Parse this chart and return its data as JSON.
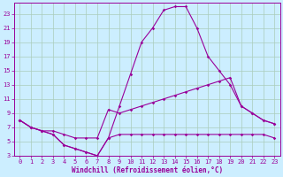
{
  "xlabel": "Windchill (Refroidissement éolien,°C)",
  "bg_color": "#cceeff",
  "line_color": "#990099",
  "grid_color": "#aaccbb",
  "xlim": [
    -0.5,
    23.5
  ],
  "ylim": [
    3,
    24.5
  ],
  "yticks": [
    3,
    5,
    7,
    9,
    11,
    13,
    15,
    17,
    19,
    21,
    23
  ],
  "xticks": [
    0,
    1,
    2,
    3,
    4,
    5,
    6,
    7,
    8,
    9,
    10,
    11,
    12,
    13,
    14,
    15,
    16,
    17,
    18,
    19,
    20,
    21,
    22,
    23
  ],
  "line1_x": [
    0,
    1,
    2,
    3,
    4,
    5,
    6,
    7,
    8,
    9,
    10,
    11,
    12,
    13,
    14,
    15,
    16,
    17,
    18,
    19,
    20,
    21,
    22,
    23
  ],
  "line1_y": [
    8,
    7,
    6.5,
    6,
    4.5,
    4,
    3.5,
    3,
    5.5,
    6,
    6,
    6,
    6,
    6,
    6,
    6,
    6,
    6,
    6,
    6,
    6,
    6,
    6,
    5.5
  ],
  "line2_x": [
    0,
    1,
    2,
    3,
    4,
    5,
    6,
    7,
    8,
    9,
    10,
    11,
    12,
    13,
    14,
    15,
    16,
    17,
    18,
    19,
    20,
    21,
    22,
    23
  ],
  "line2_y": [
    8,
    7,
    6.5,
    6.5,
    6,
    5.5,
    5.5,
    5.5,
    9.5,
    9,
    9.5,
    10,
    10.5,
    11,
    11.5,
    12,
    12.5,
    13,
    13.5,
    14,
    10,
    9,
    8,
    7.5
  ],
  "line3_x": [
    0,
    1,
    2,
    3,
    4,
    5,
    6,
    7,
    8,
    9,
    10,
    11,
    12,
    13,
    14,
    15,
    16,
    17,
    18,
    19,
    20,
    21,
    22,
    23
  ],
  "line3_y": [
    8,
    7,
    6.5,
    6,
    4.5,
    4,
    3.5,
    3,
    5.5,
    10,
    14.5,
    19,
    21,
    23.5,
    24,
    24,
    21,
    17,
    15,
    13,
    10,
    9,
    8,
    7.5
  ]
}
